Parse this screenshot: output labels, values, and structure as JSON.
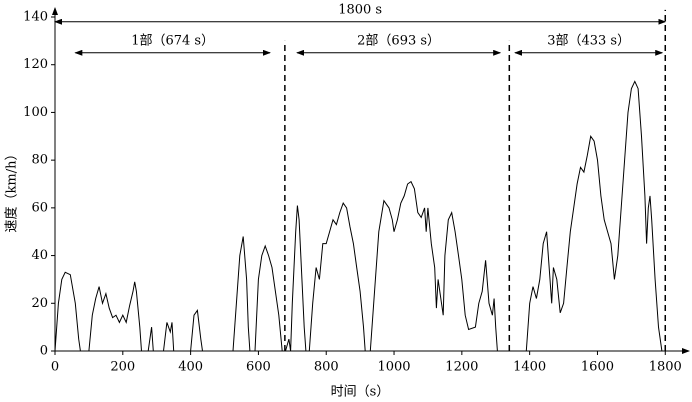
{
  "chart_data": {
    "type": "line",
    "xlabel": "时间（s）",
    "ylabel": "速度（km/h）",
    "xlim": [
      0,
      1870
    ],
    "ylim": [
      0,
      140
    ],
    "xticks": [
      0,
      200,
      400,
      600,
      800,
      1000,
      1200,
      1400,
      1600,
      1800
    ],
    "yticks": [
      0,
      20,
      40,
      60,
      80,
      100,
      120,
      140
    ],
    "color": "#000000",
    "x": [
      0,
      10,
      20,
      30,
      45,
      60,
      70,
      75,
      100,
      110,
      120,
      130,
      140,
      150,
      160,
      170,
      180,
      190,
      200,
      210,
      220,
      230,
      235,
      240,
      250,
      255,
      275,
      285,
      290,
      320,
      330,
      340,
      345,
      350,
      400,
      410,
      420,
      430,
      435,
      525,
      535,
      545,
      555,
      565,
      570,
      575,
      590,
      600,
      610,
      620,
      630,
      640,
      650,
      660,
      670,
      680,
      690,
      695,
      700,
      710,
      715,
      720,
      725,
      735,
      740,
      750,
      760,
      770,
      780,
      790,
      800,
      810,
      820,
      830,
      840,
      850,
      860,
      870,
      880,
      890,
      900,
      910,
      915,
      930,
      945,
      955,
      970,
      985,
      995,
      1000,
      1010,
      1020,
      1030,
      1040,
      1050,
      1060,
      1070,
      1080,
      1090,
      1095,
      1100,
      1110,
      1120,
      1125,
      1130,
      1140,
      1145,
      1150,
      1160,
      1170,
      1180,
      1190,
      1200,
      1210,
      1220,
      1240,
      1250,
      1260,
      1270,
      1280,
      1290,
      1295,
      1300,
      1305,
      1335,
      1390,
      1400,
      1410,
      1420,
      1430,
      1440,
      1450,
      1460,
      1465,
      1470,
      1480,
      1490,
      1500,
      1510,
      1520,
      1530,
      1540,
      1550,
      1560,
      1570,
      1580,
      1590,
      1600,
      1610,
      1620,
      1630,
      1640,
      1650,
      1660,
      1670,
      1680,
      1690,
      1700,
      1710,
      1720,
      1730,
      1740,
      1745,
      1750,
      1755,
      1760,
      1770,
      1780,
      1790
    ],
    "values": [
      0,
      20,
      30,
      33,
      32,
      20,
      5,
      0,
      0,
      15,
      22,
      27,
      20,
      24,
      18,
      14,
      15,
      12,
      15,
      12,
      19,
      25,
      29,
      25,
      10,
      0,
      0,
      10,
      0,
      0,
      12,
      8,
      12,
      0,
      0,
      15,
      17,
      5,
      0,
      0,
      20,
      40,
      48,
      30,
      10,
      0,
      0,
      30,
      40,
      44,
      40,
      35,
      25,
      15,
      0,
      0,
      5,
      0,
      20,
      50,
      61,
      55,
      40,
      10,
      0,
      0,
      20,
      35,
      30,
      45,
      45,
      50,
      55,
      53,
      58,
      62,
      60,
      52,
      45,
      35,
      25,
      10,
      0,
      0,
      30,
      50,
      63,
      60,
      55,
      50,
      55,
      62,
      65,
      70,
      71,
      68,
      58,
      56,
      60,
      50,
      60,
      45,
      35,
      18,
      30,
      20,
      15,
      40,
      55,
      58,
      50,
      40,
      30,
      15,
      9,
      10,
      20,
      25,
      38,
      20,
      15,
      22,
      10,
      0,
      0,
      0,
      20,
      27,
      22,
      30,
      45,
      50,
      30,
      20,
      35,
      30,
      16,
      20,
      35,
      50,
      60,
      70,
      77,
      75,
      82,
      90,
      88,
      80,
      65,
      55,
      50,
      45,
      30,
      40,
      60,
      80,
      100,
      110,
      113,
      110,
      90,
      65,
      45,
      60,
      65,
      55,
      30,
      10,
      0
    ],
    "dividers": [
      {
        "x": 678,
        "y": [
          0,
          130
        ]
      },
      {
        "x": 1340,
        "y": [
          0,
          130
        ]
      },
      {
        "x": 1800,
        "y": [
          0,
          143
        ]
      }
    ],
    "annotations": [
      {
        "text": "1800 s",
        "x": [
          0,
          1800
        ],
        "y": 138
      },
      {
        "text": "1部（674 s）",
        "x": [
          60,
          634
        ],
        "y": 125
      },
      {
        "text": "2部（693 s）",
        "x": [
          714,
          1313
        ],
        "y": 125
      },
      {
        "text": "3部（433 s）",
        "x": [
          1357,
          1791
        ],
        "y": 125
      }
    ]
  }
}
